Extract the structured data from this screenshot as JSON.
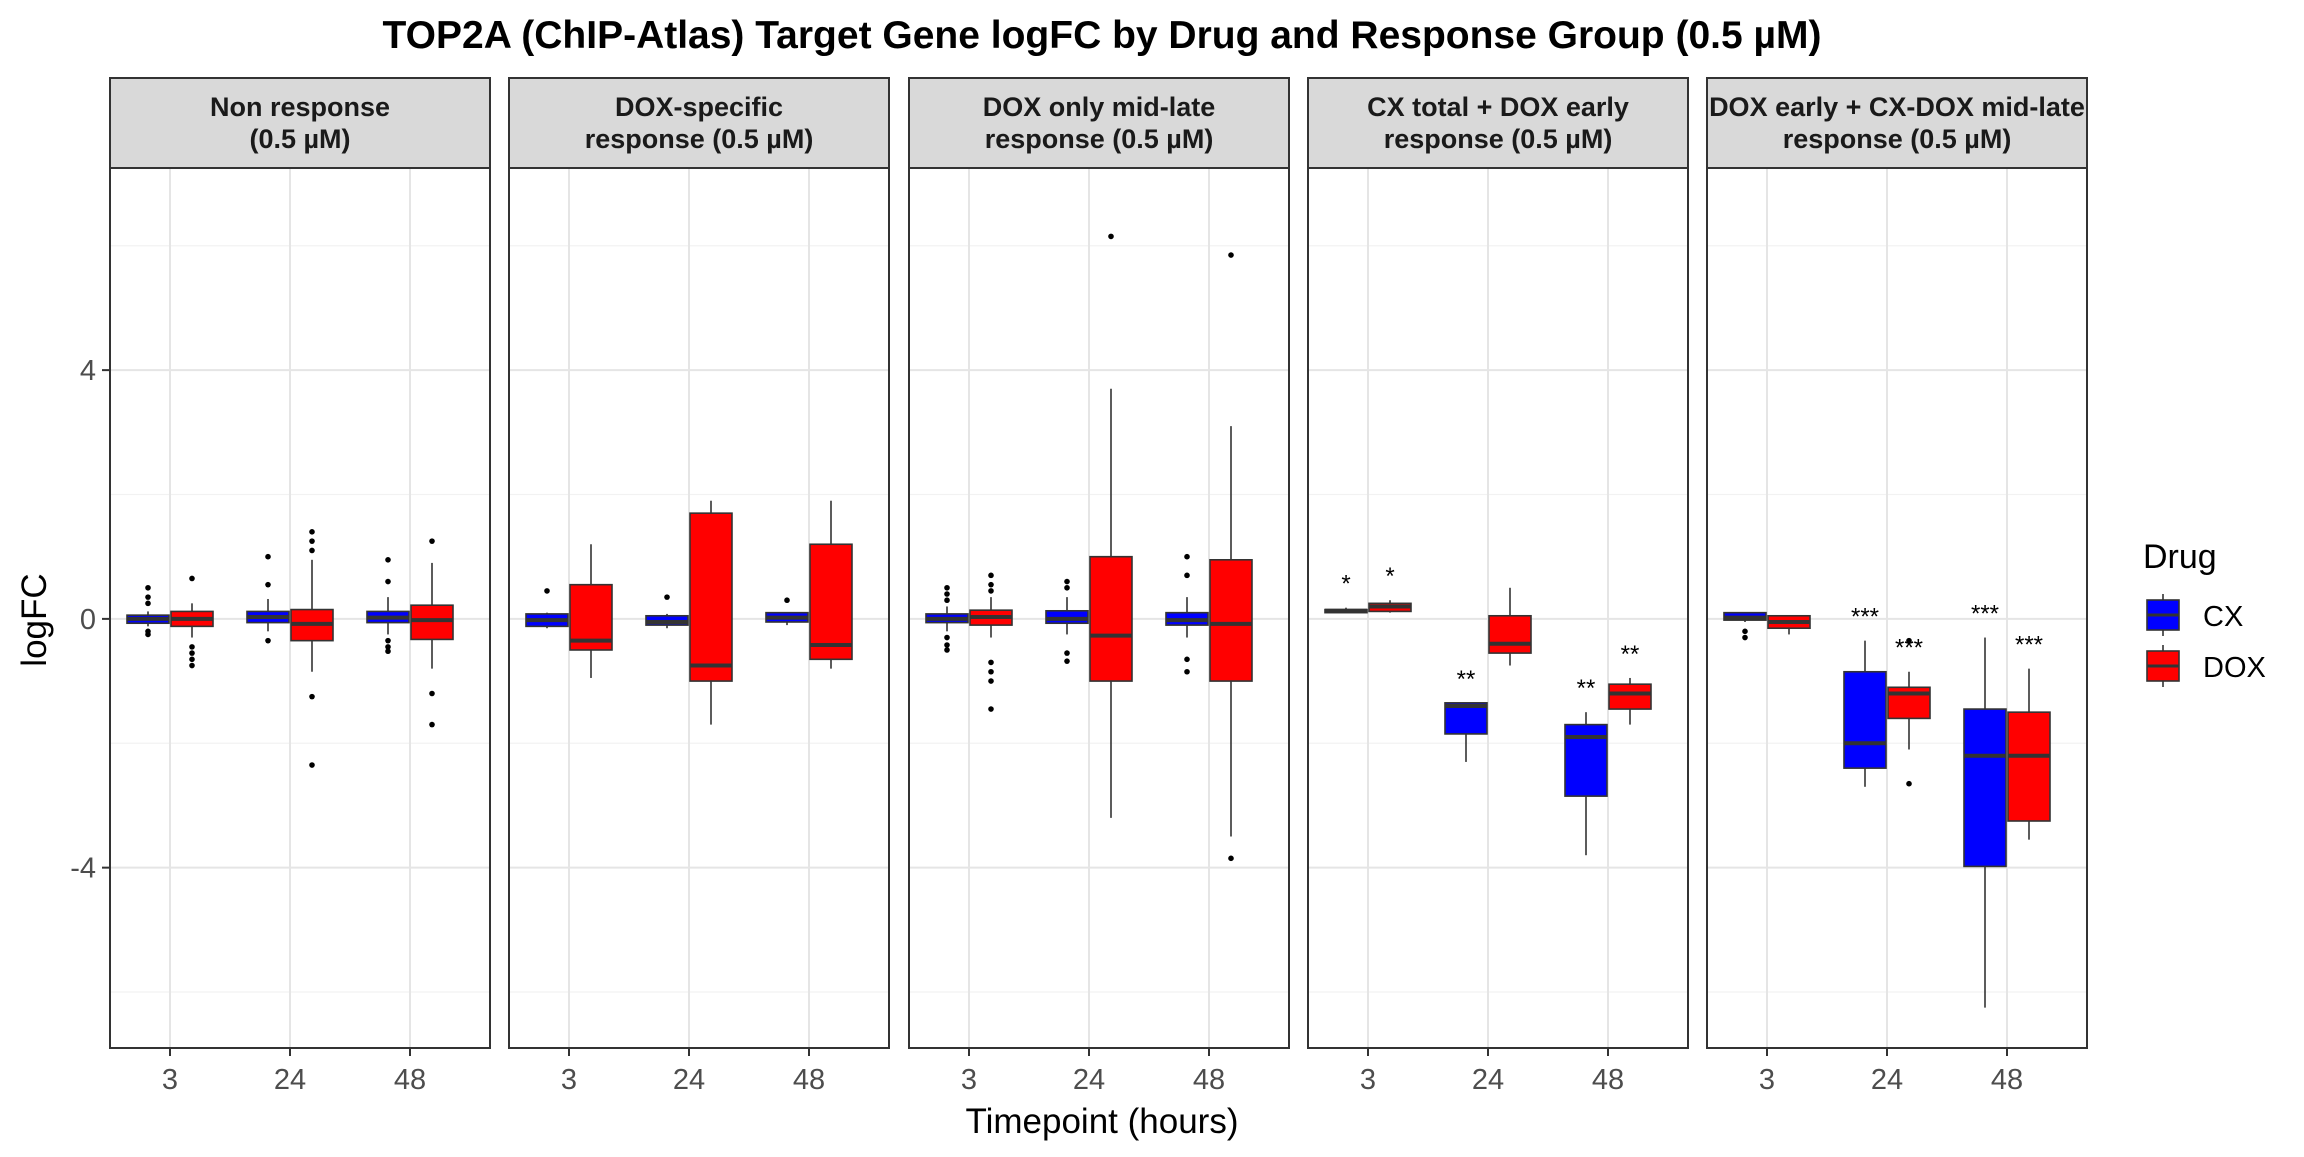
{
  "chart_data": {
    "type": "boxplot",
    "title": "TOP2A (ChIP-Atlas) Target Gene logFC by Drug and Response Group (0.5 µM)",
    "xlabel": "Timepoint (hours)",
    "ylabel": "logFC",
    "ylim": [
      -6.9,
      7.25
    ],
    "yticks": [
      -4,
      0,
      4
    ],
    "timepoints": [
      "3",
      "24",
      "48"
    ],
    "legend": {
      "title": "Drug",
      "position": "right",
      "items": [
        {
          "name": "CX",
          "color": "#0000FF"
        },
        {
          "name": "DOX",
          "color": "#FF0000"
        }
      ]
    },
    "panels": [
      {
        "title": "Non response\n(0.5 µM)",
        "groups": [
          {
            "timepoint": "3",
            "drug": "CX",
            "q1": -0.07,
            "median": 0.0,
            "q3": 0.06,
            "whisker_low": -0.12,
            "whisker_high": 0.12,
            "outliers": [
              0.5,
              0.35,
              0.25,
              -0.2,
              -0.25
            ],
            "sig": ""
          },
          {
            "timepoint": "3",
            "drug": "DOX",
            "q1": -0.12,
            "median": 0.0,
            "q3": 0.12,
            "whisker_low": -0.3,
            "whisker_high": 0.25,
            "outliers": [
              0.65,
              -0.45,
              -0.55,
              -0.65,
              -0.75
            ],
            "sig": ""
          },
          {
            "timepoint": "24",
            "drug": "CX",
            "q1": -0.06,
            "median": 0.03,
            "q3": 0.12,
            "whisker_low": -0.2,
            "whisker_high": 0.32,
            "outliers": [
              1.0,
              0.55,
              -0.35
            ],
            "sig": ""
          },
          {
            "timepoint": "24",
            "drug": "DOX",
            "q1": -0.35,
            "median": -0.08,
            "q3": 0.15,
            "whisker_low": -0.85,
            "whisker_high": 0.95,
            "outliers": [
              1.4,
              1.25,
              1.1,
              -1.25,
              -2.35
            ],
            "sig": ""
          },
          {
            "timepoint": "48",
            "drug": "CX",
            "q1": -0.06,
            "median": 0.02,
            "q3": 0.12,
            "whisker_low": -0.25,
            "whisker_high": 0.35,
            "outliers": [
              0.95,
              0.6,
              -0.35,
              -0.45,
              -0.52
            ],
            "sig": ""
          },
          {
            "timepoint": "48",
            "drug": "DOX",
            "q1": -0.33,
            "median": -0.02,
            "q3": 0.22,
            "whisker_low": -0.8,
            "whisker_high": 0.9,
            "outliers": [
              1.25,
              -1.2,
              -1.7
            ],
            "sig": ""
          }
        ]
      },
      {
        "title": "DOX-specific\nresponse (0.5 µM)",
        "groups": [
          {
            "timepoint": "3",
            "drug": "CX",
            "q1": -0.12,
            "median": -0.02,
            "q3": 0.08,
            "whisker_low": -0.15,
            "whisker_high": 0.1,
            "outliers": [
              0.45
            ],
            "sig": ""
          },
          {
            "timepoint": "3",
            "drug": "DOX",
            "q1": -0.5,
            "median": -0.35,
            "q3": 0.55,
            "whisker_low": -0.95,
            "whisker_high": 1.2,
            "outliers": [],
            "sig": ""
          },
          {
            "timepoint": "24",
            "drug": "CX",
            "q1": -0.1,
            "median": -0.05,
            "q3": 0.05,
            "whisker_low": -0.15,
            "whisker_high": 0.08,
            "outliers": [
              0.35
            ],
            "sig": ""
          },
          {
            "timepoint": "24",
            "drug": "DOX",
            "q1": -1.0,
            "median": -0.75,
            "q3": 1.7,
            "whisker_low": -1.7,
            "whisker_high": 1.9,
            "outliers": [],
            "sig": ""
          },
          {
            "timepoint": "48",
            "drug": "CX",
            "q1": -0.05,
            "median": 0.02,
            "q3": 0.1,
            "whisker_low": -0.1,
            "whisker_high": 0.1,
            "outliers": [
              0.3
            ],
            "sig": ""
          },
          {
            "timepoint": "48",
            "drug": "DOX",
            "q1": -0.65,
            "median": -0.42,
            "q3": 1.2,
            "whisker_low": -0.8,
            "whisker_high": 1.9,
            "outliers": [],
            "sig": ""
          }
        ]
      },
      {
        "title": "DOX only mid-late\nresponse (0.5 µM)",
        "groups": [
          {
            "timepoint": "3",
            "drug": "CX",
            "q1": -0.06,
            "median": 0.0,
            "q3": 0.08,
            "whisker_low": -0.2,
            "whisker_high": 0.2,
            "outliers": [
              0.5,
              0.4,
              0.3,
              -0.3,
              -0.42,
              -0.5
            ],
            "sig": ""
          },
          {
            "timepoint": "3",
            "drug": "DOX",
            "q1": -0.1,
            "median": 0.03,
            "q3": 0.14,
            "whisker_low": -0.3,
            "whisker_high": 0.35,
            "outliers": [
              0.7,
              0.55,
              0.45,
              -0.7,
              -0.85,
              -1.0,
              -1.45
            ],
            "sig": ""
          },
          {
            "timepoint": "24",
            "drug": "CX",
            "q1": -0.07,
            "median": 0.0,
            "q3": 0.13,
            "whisker_low": -0.25,
            "whisker_high": 0.35,
            "outliers": [
              0.6,
              0.5,
              -0.55,
              -0.68
            ],
            "sig": ""
          },
          {
            "timepoint": "24",
            "drug": "DOX",
            "q1": -1.0,
            "median": -0.27,
            "q3": 1.0,
            "whisker_low": -3.2,
            "whisker_high": 3.7,
            "outliers": [
              6.15
            ],
            "sig": ""
          },
          {
            "timepoint": "48",
            "drug": "CX",
            "q1": -0.1,
            "median": -0.02,
            "q3": 0.1,
            "whisker_low": -0.3,
            "whisker_high": 0.35,
            "outliers": [
              1.0,
              0.7,
              -0.65,
              -0.85
            ],
            "sig": ""
          },
          {
            "timepoint": "48",
            "drug": "DOX",
            "q1": -1.0,
            "median": -0.08,
            "q3": 0.95,
            "whisker_low": -3.5,
            "whisker_high": 3.1,
            "outliers": [
              5.85,
              -3.85
            ],
            "sig": ""
          }
        ]
      },
      {
        "title": "CX total + DOX early\nresponse (0.5 µM)",
        "groups": [
          {
            "timepoint": "3",
            "drug": "CX",
            "q1": 0.1,
            "median": 0.13,
            "q3": 0.15,
            "whisker_low": 0.1,
            "whisker_high": 0.18,
            "outliers": [],
            "sig": "*"
          },
          {
            "timepoint": "3",
            "drug": "DOX",
            "q1": 0.12,
            "median": 0.2,
            "q3": 0.25,
            "whisker_low": 0.1,
            "whisker_high": 0.3,
            "outliers": [],
            "sig": "*"
          },
          {
            "timepoint": "24",
            "drug": "CX",
            "q1": -1.85,
            "median": -1.4,
            "q3": -1.35,
            "whisker_low": -2.3,
            "whisker_high": -1.35,
            "outliers": [],
            "sig": "**"
          },
          {
            "timepoint": "24",
            "drug": "DOX",
            "q1": -0.55,
            "median": -0.4,
            "q3": 0.05,
            "whisker_low": -0.75,
            "whisker_high": 0.5,
            "outliers": [],
            "sig": ""
          },
          {
            "timepoint": "48",
            "drug": "CX",
            "q1": -2.85,
            "median": -1.9,
            "q3": -1.7,
            "whisker_low": -3.8,
            "whisker_high": -1.5,
            "outliers": [],
            "sig": "**"
          },
          {
            "timepoint": "48",
            "drug": "DOX",
            "q1": -1.45,
            "median": -1.2,
            "q3": -1.05,
            "whisker_low": -1.7,
            "whisker_high": -0.95,
            "outliers": [],
            "sig": "**"
          }
        ]
      },
      {
        "title": "DOX early + CX-DOX mid-late\nresponse (0.5 µM)",
        "groups": [
          {
            "timepoint": "3",
            "drug": "CX",
            "q1": -0.02,
            "median": 0.02,
            "q3": 0.1,
            "whisker_low": -0.05,
            "whisker_high": 0.1,
            "outliers": [
              -0.2,
              -0.3
            ],
            "sig": ""
          },
          {
            "timepoint": "3",
            "drug": "DOX",
            "q1": -0.15,
            "median": -0.05,
            "q3": 0.05,
            "whisker_low": -0.25,
            "whisker_high": 0.05,
            "outliers": [],
            "sig": ""
          },
          {
            "timepoint": "24",
            "drug": "CX",
            "q1": -2.4,
            "median": -2.0,
            "q3": -0.85,
            "whisker_low": -2.7,
            "whisker_high": -0.35,
            "outliers": [],
            "sig": "***"
          },
          {
            "timepoint": "24",
            "drug": "DOX",
            "q1": -1.6,
            "median": -1.2,
            "q3": -1.1,
            "whisker_low": -2.1,
            "whisker_high": -0.85,
            "outliers": [
              -0.35,
              -2.65
            ],
            "sig": "***"
          },
          {
            "timepoint": "48",
            "drug": "CX",
            "q1": -3.98,
            "median": -2.2,
            "q3": -1.45,
            "whisker_low": -6.25,
            "whisker_high": -0.3,
            "outliers": [],
            "sig": "***"
          },
          {
            "timepoint": "48",
            "drug": "DOX",
            "q1": -3.25,
            "median": -2.2,
            "q3": -1.5,
            "whisker_low": -3.55,
            "whisker_high": -0.8,
            "outliers": [],
            "sig": "***"
          }
        ]
      }
    ]
  }
}
